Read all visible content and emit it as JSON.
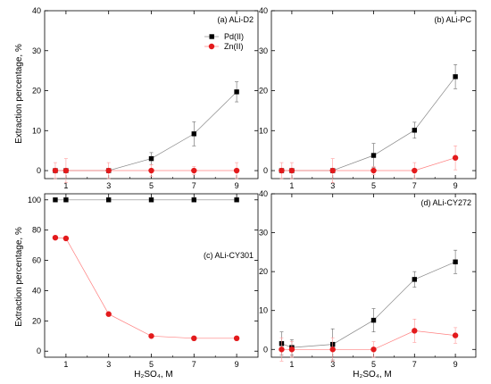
{
  "figure": {
    "ylabel_left": "Extraction percentage, %",
    "xlabel_bottom": "H₂SO₄, M"
  },
  "chart_data": [
    {
      "type": "scatter",
      "panel_label": "(a) ALi-D2",
      "xlabel": "",
      "ylabel": "Extraction percentage, %",
      "x_ticks": [
        1,
        3,
        5,
        7,
        9
      ],
      "y_ticks": [
        0,
        10,
        20,
        30,
        40
      ],
      "xlim": [
        0,
        10
      ],
      "ylim": [
        -2,
        40
      ],
      "legend": {
        "placement": "top-right",
        "entries": [
          "Pd(II)",
          "Zn(II)"
        ]
      },
      "series": [
        {
          "name": "Pd(II)",
          "marker": "square",
          "color": "#000000",
          "x": [
            0.5,
            1,
            3,
            5,
            7,
            9
          ],
          "y": [
            0,
            0,
            0,
            3,
            9.2,
            19.7
          ],
          "err": [
            0,
            0,
            0,
            1.5,
            3,
            2.5
          ]
        },
        {
          "name": "Zn(II)",
          "marker": "circle",
          "color": "#e31a1c",
          "x": [
            0.5,
            1,
            3,
            5,
            7,
            9
          ],
          "y": [
            0,
            0,
            0,
            0,
            0,
            0
          ],
          "err": [
            2,
            3,
            2,
            1.5,
            1,
            2
          ]
        }
      ]
    },
    {
      "type": "scatter",
      "panel_label": "(b) ALi-PC",
      "xlabel": "",
      "ylabel": "",
      "x_ticks": [
        1,
        3,
        5,
        7,
        9
      ],
      "y_ticks": [
        0,
        10,
        20,
        30,
        40
      ],
      "xlim": [
        0,
        10
      ],
      "ylim": [
        -2,
        40
      ],
      "series": [
        {
          "name": "Pd(II)",
          "marker": "square",
          "color": "#000000",
          "x": [
            0.5,
            1,
            3,
            5,
            7,
            9
          ],
          "y": [
            0,
            0,
            0,
            3.8,
            10.1,
            23.5
          ],
          "err": [
            0,
            0,
            0,
            3,
            2,
            3
          ]
        },
        {
          "name": "Zn(II)",
          "marker": "circle",
          "color": "#e31a1c",
          "x": [
            0.5,
            1,
            3,
            5,
            7,
            9
          ],
          "y": [
            0,
            0,
            0,
            0,
            0,
            3.2
          ],
          "err": [
            2,
            2,
            3,
            1,
            2,
            3
          ]
        }
      ]
    },
    {
      "type": "scatter",
      "panel_label": "(c) ALi-CY301",
      "xlabel": "H₂SO₄, M",
      "ylabel": "Extraction percentage, %",
      "x_ticks": [
        1,
        3,
        5,
        7,
        9
      ],
      "y_ticks": [
        0,
        20,
        40,
        60,
        80,
        100
      ],
      "xlim": [
        0,
        10
      ],
      "ylim": [
        -4,
        104
      ],
      "series": [
        {
          "name": "Pd(II)",
          "marker": "square",
          "color": "#000000",
          "x": [
            0.5,
            1,
            3,
            5,
            7,
            9
          ],
          "y": [
            100,
            100,
            100,
            100,
            100,
            100
          ],
          "err": [
            0,
            0,
            1,
            1,
            1,
            1
          ]
        },
        {
          "name": "Zn(II)",
          "marker": "circle",
          "color": "#e31a1c",
          "x": [
            0.5,
            1,
            3,
            5,
            7,
            9
          ],
          "y": [
            75,
            74.5,
            24.5,
            10,
            8.5,
            8.5
          ],
          "err": [
            0,
            0,
            1,
            1,
            1,
            1
          ]
        }
      ]
    },
    {
      "type": "scatter",
      "panel_label": "(d) ALi-CY272",
      "xlabel": "H₂SO₄, M",
      "ylabel": "",
      "x_ticks": [
        1,
        3,
        5,
        7,
        9
      ],
      "y_ticks": [
        0,
        10,
        20,
        30,
        40
      ],
      "xlim": [
        0,
        10
      ],
      "ylim": [
        -2,
        40
      ],
      "series": [
        {
          "name": "Pd(II)",
          "marker": "square",
          "color": "#000000",
          "x": [
            0.5,
            1,
            3,
            5,
            7,
            9
          ],
          "y": [
            1.5,
            0.5,
            1.3,
            7.5,
            18,
            22.5
          ],
          "err": [
            3,
            2,
            4,
            3,
            2,
            3
          ]
        },
        {
          "name": "Zn(II)",
          "marker": "circle",
          "color": "#e31a1c",
          "x": [
            0.5,
            1,
            3,
            5,
            7,
            9
          ],
          "y": [
            0,
            0,
            0,
            0,
            4.8,
            3.6
          ],
          "err": [
            3,
            2,
            3,
            2,
            3,
            2
          ]
        }
      ]
    }
  ]
}
